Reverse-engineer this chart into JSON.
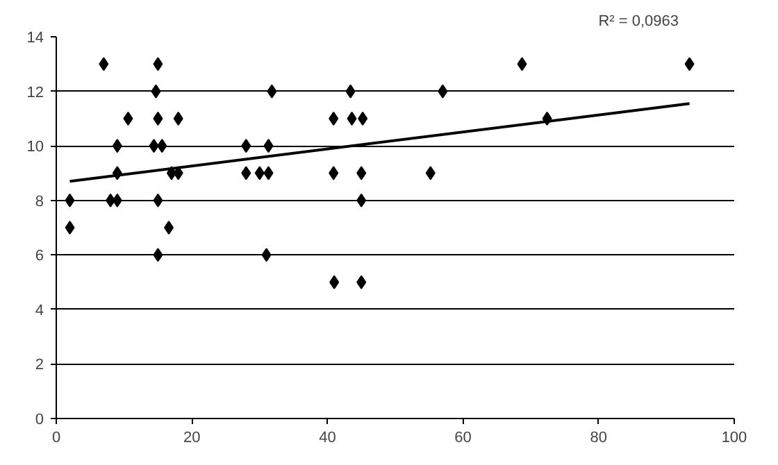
{
  "chart_data": {
    "type": "scatter",
    "marker": "diamond",
    "grid": "y",
    "xlim": [
      0,
      100
    ],
    "ylim": [
      0,
      14
    ],
    "xticks": [
      0,
      20,
      40,
      60,
      80,
      100
    ],
    "yticks": [
      0,
      2,
      4,
      6,
      8,
      10,
      12,
      14
    ],
    "annotations": [
      "R² = 0,0963"
    ],
    "series": [
      {
        "color": "#000000",
        "x": [
          2,
          2,
          7,
          8,
          9,
          9,
          9,
          10.6,
          14.7,
          15,
          15,
          14.4,
          15,
          15,
          15.6,
          16.6,
          17,
          18,
          18,
          28,
          28,
          30,
          31,
          31.3,
          31.3,
          31.8,
          40.9,
          40.9,
          41,
          43.4,
          43.6,
          45,
          45,
          45,
          45.2,
          55.2,
          57,
          68.7,
          72.4,
          93.4
        ],
        "values": [
          8,
          7,
          13,
          8,
          8,
          10,
          9,
          11,
          12,
          13,
          11,
          10,
          8,
          6,
          10,
          7,
          9,
          11,
          9,
          10,
          9,
          9,
          6,
          10,
          9,
          12,
          11,
          9,
          5,
          12,
          11,
          9,
          8,
          5,
          11,
          9,
          12,
          13,
          11,
          13
        ]
      },
      {
        "type": "line",
        "marker": "none",
        "color": "#000000",
        "x": [
          2,
          93.4
        ],
        "values": [
          8.7,
          11.55
        ]
      }
    ]
  }
}
